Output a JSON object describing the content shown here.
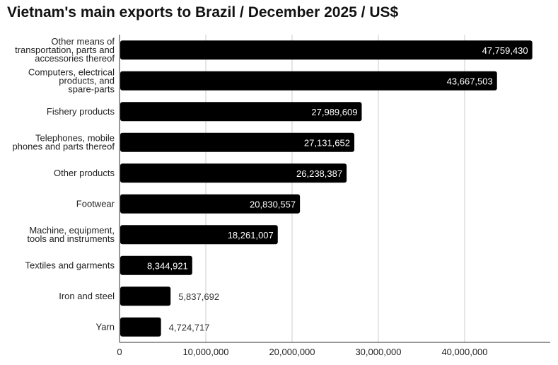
{
  "chart_data": {
    "type": "bar",
    "orientation": "horizontal",
    "title": "Vietnam's main exports to Brazil / December 2025 / US$",
    "xlabel": "",
    "ylabel": "",
    "categories": [
      [
        "Other means of",
        "transportation, parts and",
        "accessories thereof"
      ],
      [
        "Computers, electrical",
        "products, and",
        "spare-parts"
      ],
      [
        "Fishery products"
      ],
      [
        "Telephones, mobile",
        "phones and parts thereof"
      ],
      [
        "Other products"
      ],
      [
        "Footwear"
      ],
      [
        "Machine, equipment,",
        "tools and instruments"
      ],
      [
        "Textiles and garments"
      ],
      [
        "Iron and steel"
      ],
      [
        "Yarn"
      ]
    ],
    "values": [
      47759430,
      43667503,
      27989609,
      27131652,
      26238387,
      20830557,
      18261007,
      8344921,
      5837692,
      4724717
    ],
    "value_labels": [
      "47,759,430",
      "43,667,503",
      "27,989,609",
      "27,131,652",
      "26,238,387",
      "20,830,557",
      "18,261,007",
      "8,344,921",
      "5,837,692",
      "4,724,717"
    ],
    "xlim": [
      0,
      50000000
    ],
    "ticks": [
      0,
      10000000,
      20000000,
      30000000,
      40000000
    ],
    "tick_labels": [
      "0",
      "10,000,000",
      "20,000,000",
      "30,000,000",
      "40,000,000"
    ],
    "bar_color": "#000000",
    "grid": true,
    "legend": "none"
  }
}
